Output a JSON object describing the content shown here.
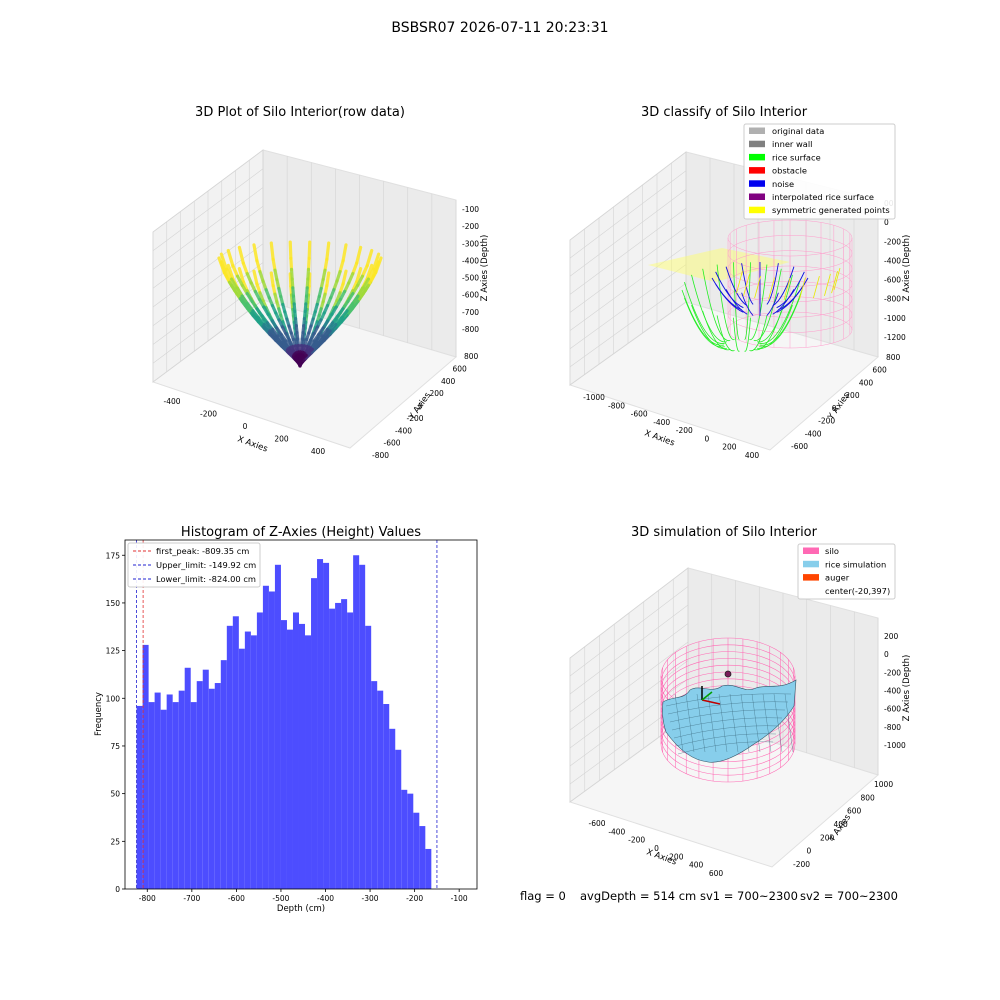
{
  "suptitle": "BSBSR07 2026-07-11 20:23:31",
  "footer": {
    "flag": "flag = 0",
    "avg": "avgDepth = 514 cm",
    "sv1": "sv1 = 700~2300",
    "sv2": "sv2 = 700~2300"
  },
  "colors": {
    "hist_bar": "#4d4dff",
    "first_peak": "#e03030",
    "limits": "#2020d0",
    "pane": "#f2f2f2",
    "grid": "#d0d0d0"
  },
  "chart_data": [
    {
      "type": "scatter",
      "dim": "3d",
      "title": "3D Plot of Silo Interior(row data)",
      "xlabel": "X Axies",
      "ylabel": "Y Axies",
      "zlabel": "Z Axies (Depth)",
      "x_ticks": [
        "-400",
        "-200",
        "0",
        "200",
        "400"
      ],
      "y_ticks": [
        "-800",
        "-600",
        "-400",
        "-200",
        "0",
        "200",
        "400",
        "600",
        "800"
      ],
      "z_ticks": [
        "-100",
        "-200",
        "-300",
        "-400",
        "-500",
        "-600",
        "-700",
        "-800"
      ],
      "colormap": "viridis"
    },
    {
      "type": "scatter",
      "dim": "3d",
      "title": "3D classify of Silo Interior",
      "xlabel": "X Axies",
      "ylabel": "Y Axies",
      "zlabel": "Z Axies (Depth)",
      "x_ticks": [
        "-1000",
        "-800",
        "-600",
        "-400",
        "-200",
        "0",
        "200",
        "400"
      ],
      "y_ticks": [
        "-600",
        "-400",
        "-200",
        "0",
        "200",
        "400",
        "600",
        "800"
      ],
      "z_ticks": [
        "200",
        "0",
        "-200",
        "-400",
        "-600",
        "-800",
        "-1000",
        "-1200"
      ],
      "z_ticks_partial": "00",
      "legend": [
        {
          "name": "original data",
          "color": "#b0b0b0"
        },
        {
          "name": "inner wall",
          "color": "#808080"
        },
        {
          "name": "rice surface",
          "color": "#00ff00"
        },
        {
          "name": "obstacle",
          "color": "#ff0000"
        },
        {
          "name": "noise",
          "color": "#0000ee"
        },
        {
          "name": "interpolated rice surface",
          "color": "#800080"
        },
        {
          "name": "symmetric generated points",
          "color": "#ffff00"
        }
      ]
    },
    {
      "type": "bar",
      "title": "Histogram of Z-Axies (Height) Values",
      "xlabel": "Depth (cm)",
      "ylabel": "Frequency",
      "xlim": [
        -850,
        -60
      ],
      "ylim": [
        0,
        183
      ],
      "x_ticks": [
        -800,
        -700,
        -600,
        -500,
        -400,
        -300,
        -200,
        -100
      ],
      "y_ticks": [
        0,
        25,
        50,
        75,
        100,
        125,
        150,
        175
      ],
      "bin_start": -824,
      "bin_width": 13.5,
      "values": [
        96,
        128,
        98,
        103,
        94,
        102,
        98,
        104,
        116,
        98,
        109,
        115,
        105,
        108,
        120,
        138,
        143,
        126,
        135,
        133,
        145,
        159,
        156,
        170,
        141,
        136,
        145,
        139,
        133,
        163,
        173,
        171,
        147,
        150,
        152,
        145,
        175,
        170,
        138,
        109,
        104,
        97,
        84,
        73,
        52,
        50,
        40,
        33,
        21
      ],
      "lines": [
        {
          "label": "first_peak: -809.35 cm",
          "value": -809.35,
          "style": "first_peak"
        },
        {
          "label": "Upper_limit: -149.92 cm",
          "value": -149.92,
          "style": "limits"
        },
        {
          "label": "Lower_limit: -824.00 cm",
          "value": -824.0,
          "style": "limits"
        }
      ],
      "legend_position": "upper-left"
    },
    {
      "type": "surface",
      "dim": "3d",
      "title": "3D simulation of Silo Interior",
      "xlabel": "X Axies",
      "ylabel": "Y Axies",
      "zlabel": "Z Axies (Depth)",
      "x_ticks": [
        "-600",
        "-400",
        "-200",
        "0",
        "200",
        "400",
        "600"
      ],
      "y_ticks": [
        "-200",
        "0",
        "200",
        "400",
        "600",
        "800",
        "1000"
      ],
      "z_ticks": [
        "200",
        "0",
        "-200",
        "-400",
        "-600",
        "-800",
        "-1000"
      ],
      "legend": [
        {
          "name": "silo",
          "color": "#ff69b4"
        },
        {
          "name": "rice simulation",
          "color": "#87ceeb"
        },
        {
          "name": "auger",
          "color": "#ff4500"
        },
        {
          "name": "center(-20,397)",
          "color": "none"
        }
      ]
    }
  ]
}
